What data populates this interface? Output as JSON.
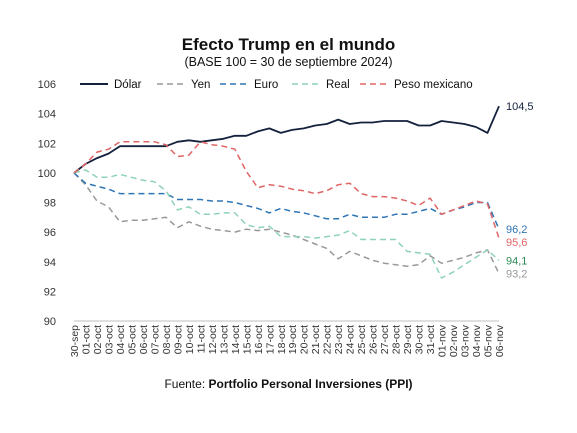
{
  "chart_data": {
    "type": "line",
    "title": "Efecto Trump en el mundo",
    "subtitle": "(BASE 100 = 30 de septiembre 2024)",
    "source_prefix": "Fuente: ",
    "source_name": "Portfolio Personal Inversiones (PPI)",
    "ylim": [
      90,
      106
    ],
    "yticks": [
      "90",
      "92",
      "94",
      "96",
      "98",
      "100",
      "102",
      "104",
      "106"
    ],
    "grid": false,
    "legend_position": "top",
    "categories": [
      "30-sep",
      "01-oct",
      "02-oct",
      "03-oct",
      "04-oct",
      "05-oct",
      "06-oct",
      "07-oct",
      "08-oct",
      "09-oct",
      "10-oct",
      "11-oct",
      "12-oct",
      "13-oct",
      "14-oct",
      "15-oct",
      "16-oct",
      "17-oct",
      "18-oct",
      "19-oct",
      "20-oct",
      "21-oct",
      "22-oct",
      "23-oct",
      "24-oct",
      "25-oct",
      "26-oct",
      "27-oct",
      "28-oct",
      "29-oct",
      "30-oct",
      "31-oct",
      "01-nov",
      "02-nov",
      "03-nov",
      "04-nov",
      "05-nov",
      "06-nov"
    ],
    "series": [
      {
        "name": "Dólar",
        "color": "#14213d",
        "dash": "solid",
        "end_label": "104,5",
        "values": [
          100,
          100.6,
          101.0,
          101.3,
          101.8,
          101.8,
          101.8,
          101.8,
          101.8,
          102.1,
          102.2,
          102.1,
          102.2,
          102.3,
          102.5,
          102.5,
          102.8,
          103.0,
          102.7,
          102.9,
          103.0,
          103.2,
          103.3,
          103.6,
          103.3,
          103.4,
          103.4,
          103.5,
          103.5,
          103.5,
          103.2,
          103.2,
          103.5,
          103.4,
          103.3,
          103.1,
          102.7,
          104.5
        ]
      },
      {
        "name": "Yen",
        "color": "#999999",
        "dash": "dashed",
        "end_label": "93,2",
        "values": [
          100,
          99.2,
          98.1,
          97.7,
          96.7,
          96.8,
          96.8,
          96.9,
          97.0,
          96.3,
          96.7,
          96.4,
          96.2,
          96.1,
          96.0,
          96.2,
          96.1,
          96.2,
          96.0,
          95.8,
          95.5,
          95.2,
          94.9,
          94.2,
          94.7,
          94.4,
          94.1,
          93.9,
          93.8,
          93.7,
          93.8,
          94.4,
          93.9,
          94.1,
          94.3,
          94.6,
          94.8,
          93.2
        ]
      },
      {
        "name": "Euro",
        "color": "#2e75b6",
        "dash": "dashed",
        "end_label": "96,2",
        "values": [
          100,
          99.3,
          99.1,
          98.9,
          98.6,
          98.6,
          98.6,
          98.6,
          98.6,
          98.2,
          98.2,
          98.2,
          98.1,
          98.1,
          98.0,
          97.8,
          97.6,
          97.3,
          97.6,
          97.4,
          97.3,
          97.1,
          96.9,
          96.9,
          97.2,
          97.0,
          97.0,
          97.0,
          97.2,
          97.2,
          97.4,
          97.6,
          97.2,
          97.5,
          97.7,
          98.0,
          98.0,
          96.2
        ]
      },
      {
        "name": "Real",
        "color": "#8fd3b6",
        "dash": "dashed",
        "end_label": "94,1",
        "values": [
          100,
          100.2,
          99.7,
          99.7,
          99.9,
          99.7,
          99.5,
          99.4,
          98.8,
          97.5,
          97.7,
          97.2,
          97.2,
          97.3,
          97.3,
          96.5,
          96.3,
          96.4,
          95.7,
          95.7,
          95.7,
          95.6,
          95.7,
          95.8,
          96.1,
          95.5,
          95.5,
          95.5,
          95.5,
          94.7,
          94.6,
          94.5,
          92.9,
          93.3,
          93.8,
          94.3,
          94.8,
          94.1
        ]
      },
      {
        "name": "Peso mexicano",
        "color": "#e06666",
        "dash": "dashed",
        "end_label": "95,6",
        "values": [
          100,
          100.6,
          101.4,
          101.6,
          102.1,
          102.1,
          102.1,
          102.1,
          101.9,
          101.1,
          101.2,
          102.1,
          101.9,
          101.8,
          101.6,
          100.1,
          99.0,
          99.2,
          99.1,
          98.9,
          98.8,
          98.6,
          98.8,
          99.2,
          99.3,
          98.6,
          98.4,
          98.4,
          98.3,
          98.1,
          97.8,
          98.3,
          97.2,
          97.5,
          97.8,
          98.1,
          97.9,
          95.6
        ]
      }
    ]
  }
}
